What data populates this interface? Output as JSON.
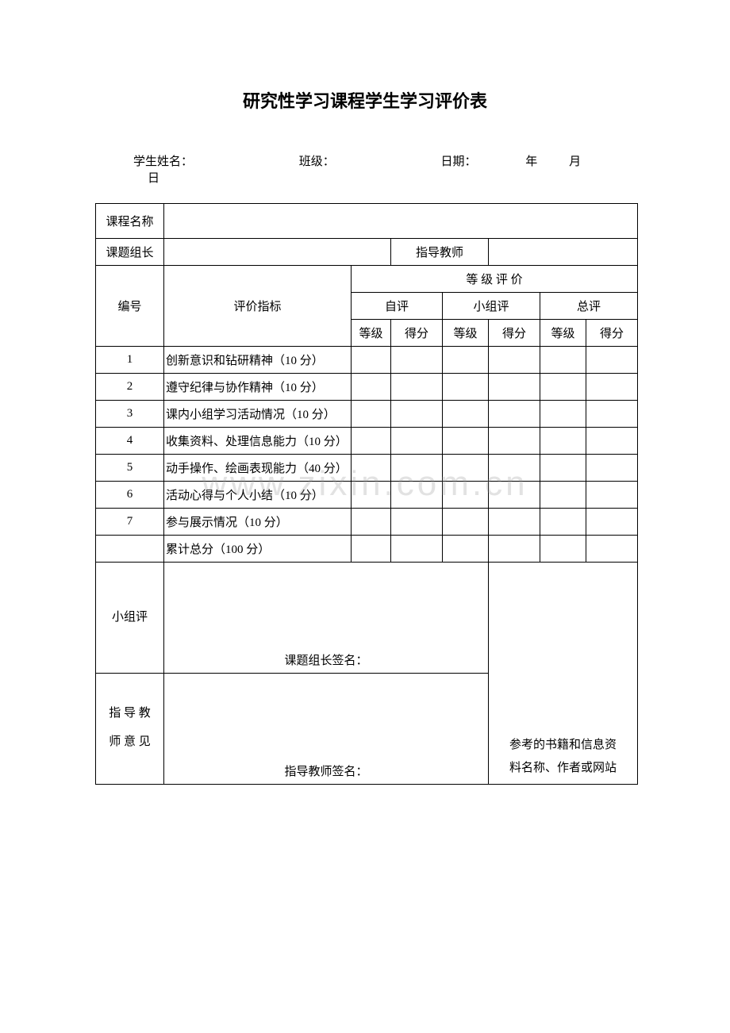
{
  "title": "研究性学习课程学生学习评价表",
  "meta": {
    "name_label": "学生姓名：",
    "class_label": "班级：",
    "date_label": "日期：",
    "year_unit": "年",
    "month_unit": "月",
    "day_unit": "日"
  },
  "rows": {
    "course_name": "课程名称",
    "group_leader": "课题组长",
    "advisor": "指导教师",
    "id_header": "编号",
    "indicator_header": "评价指标",
    "grade_eval": "等 级 评 价",
    "self_eval": "自评",
    "group_eval": "小组评",
    "total_eval": "总评",
    "grade": "等级",
    "score": "得分"
  },
  "indicators": [
    {
      "id": "1",
      "text": "创新意识和钻研精神（10 分）"
    },
    {
      "id": "2",
      "text": "遵守纪律与协作精神（10 分）"
    },
    {
      "id": "3",
      "text": "课内小组学习活动情况（10 分）"
    },
    {
      "id": "4",
      "text": "收集资料、处理信息能力（10 分）"
    },
    {
      "id": "5",
      "text": "动手操作、绘画表现能力（40 分）"
    },
    {
      "id": "6",
      "text": "活动心得与个人小结（10 分）"
    },
    {
      "id": "7",
      "text": "参与展示情况（10 分）"
    }
  ],
  "total_row": "累计总分（100 分）",
  "group_comment_label": "小组评",
  "group_sig": "课题组长签名：",
  "advisor_opinion_l1": "指 导 教",
  "advisor_opinion_l2": "师 意 见",
  "advisor_sig": "指导教师签名：",
  "ref_l1": "参考的书籍和信息资",
  "ref_l2": "料名称、作者或网站",
  "watermark": "www.zixin.com.cn"
}
